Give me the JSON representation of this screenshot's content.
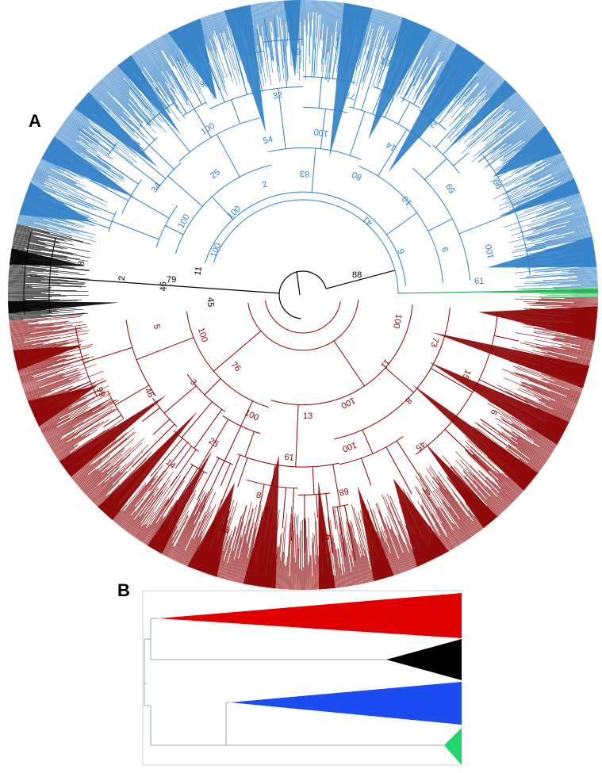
{
  "panels": {
    "a": {
      "label": "A"
    },
    "b": {
      "label": "B"
    }
  },
  "colors": {
    "blue_clade": "#2f7fc7",
    "red_clade": "#8b0000",
    "black_clade": "#000000",
    "green_clade": "#1fb24a",
    "b_red": "#e00000",
    "b_blue": "#1a4cf0",
    "b_green": "#22d46a",
    "b_black": "#000000"
  },
  "bootstrap": {
    "root_left": "79",
    "root_right": "88",
    "green_stem": "61",
    "blue_labels": [
      "100",
      "100",
      "34",
      "16",
      "100",
      "25",
      "100",
      "9",
      "2",
      "54",
      "32",
      "69",
      "83",
      "100",
      "77",
      "61",
      "80",
      "14",
      "26",
      "41",
      "10",
      "59",
      "99",
      "6",
      "9",
      "100"
    ],
    "red_labels": [
      "100",
      "73",
      "15",
      "6",
      "11",
      "8",
      "45",
      "1",
      "100",
      "100",
      "68",
      "48",
      "13",
      "61",
      "8",
      "56",
      "100",
      "25",
      "14",
      "76",
      "3",
      "46",
      "99",
      "100",
      "5"
    ],
    "black_labels": [
      "45",
      "46",
      "2",
      "8",
      "11"
    ]
  }
}
